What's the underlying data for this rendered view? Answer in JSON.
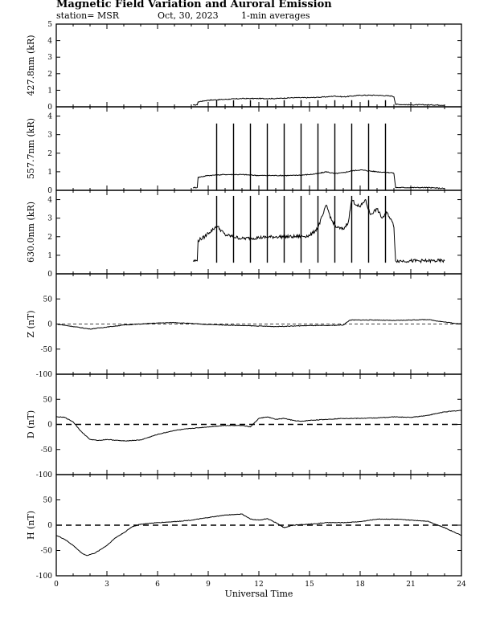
{
  "header": {
    "title": "Magnetic Field Variation and Auroral Emission",
    "station": "station= MSR",
    "date": "Oct, 30, 2023",
    "averaging": "1-min averages"
  },
  "chart_data": [
    {
      "type": "line",
      "id": "427",
      "ylabel": "427.8nm (kR)",
      "ylim": [
        0,
        5
      ],
      "yticks": [
        0,
        1,
        2,
        3,
        4,
        5
      ],
      "xlim": [
        0,
        24
      ],
      "series": [
        {
          "x": [
            8.1,
            8.35,
            8.4,
            9,
            10,
            11,
            12,
            13,
            14,
            15,
            16,
            16.5,
            17,
            17.5,
            18,
            19,
            19.9,
            20.0,
            20.1,
            21,
            22,
            23.0
          ],
          "values": [
            0.1,
            0.12,
            0.3,
            0.4,
            0.45,
            0.5,
            0.5,
            0.5,
            0.55,
            0.55,
            0.6,
            0.65,
            0.6,
            0.65,
            0.7,
            0.7,
            0.65,
            0.6,
            0.15,
            0.12,
            0.12,
            0.1
          ]
        }
      ],
      "spikes": [
        9.5,
        10.5,
        11.5,
        12.5,
        13.5,
        14.5,
        15.5,
        16.5,
        17.5,
        18.5,
        19.5
      ],
      "spike_top": 0.4
    },
    {
      "type": "line",
      "id": "557",
      "ylabel": "557.7nm (kR)",
      "ylim": [
        0,
        4.5
      ],
      "yticks": [
        0,
        1,
        2,
        3,
        4
      ],
      "xlim": [
        0,
        24
      ],
      "series": [
        {
          "x": [
            8.1,
            8.35,
            8.4,
            9,
            10,
            11,
            12,
            13,
            14,
            15,
            15.5,
            16,
            16.5,
            17,
            17.5,
            18,
            19,
            19.9,
            20.0,
            20.1,
            21,
            22,
            23.0
          ],
          "values": [
            0.15,
            0.15,
            0.7,
            0.8,
            0.85,
            0.85,
            0.8,
            0.8,
            0.8,
            0.85,
            0.9,
            1.0,
            0.9,
            0.95,
            1.05,
            1.1,
            1.0,
            0.95,
            0.9,
            0.15,
            0.15,
            0.15,
            0.1
          ]
        }
      ],
      "spikes": [
        9.5,
        10.5,
        11.5,
        12.5,
        13.5,
        14.5,
        15.5,
        16.5,
        17.5,
        18.5,
        19.5
      ],
      "spike_top": 3.6
    },
    {
      "type": "line",
      "id": "630",
      "ylabel": "630.0nm (kR)",
      "ylim": [
        0,
        4.5
      ],
      "yticks": [
        0,
        1,
        2,
        3,
        4
      ],
      "xlim": [
        0,
        24
      ],
      "series": [
        {
          "x": [
            8.1,
            8.35,
            8.4,
            8.8,
            9,
            9.3,
            9.5,
            10,
            10.5,
            11,
            12,
            13,
            14,
            15,
            15.2,
            15.5,
            15.8,
            16,
            16.3,
            16.6,
            17,
            17.3,
            17.5,
            17.8,
            18,
            18.3,
            18.6,
            19,
            19.3,
            19.6,
            19.9,
            20.0,
            20.1,
            21,
            22,
            23.0
          ],
          "values": [
            0.7,
            0.7,
            1.8,
            2.0,
            2.2,
            2.4,
            2.6,
            2.1,
            2.0,
            1.9,
            1.95,
            2.0,
            2.0,
            2.05,
            2.2,
            2.5,
            3.2,
            3.7,
            2.9,
            2.5,
            2.4,
            2.8,
            4.0,
            3.7,
            3.6,
            4.0,
            3.2,
            3.5,
            3.0,
            3.3,
            2.8,
            2.5,
            0.7,
            0.7,
            0.7,
            0.7
          ]
        }
      ],
      "spikes": [
        9.5,
        10.5,
        11.5,
        12.5,
        13.5,
        14.5,
        15.5,
        16.5,
        17.5,
        18.5,
        19.5
      ],
      "spike_top": 4.2,
      "spike_bottom": 0.6
    },
    {
      "type": "line",
      "id": "Z",
      "ylabel": "Z (nT)",
      "ylim": [
        -100,
        100
      ],
      "yticks": [
        -100,
        -50,
        0,
        50
      ],
      "xlim": [
        0,
        24
      ],
      "zero_line": "dashed-thin",
      "series": [
        {
          "x": [
            0,
            1,
            2,
            3,
            4,
            5,
            6,
            7,
            8,
            9,
            10,
            11,
            12,
            13,
            14,
            15,
            16,
            17,
            17.4,
            18,
            19,
            20,
            21,
            22,
            23,
            24
          ],
          "values": [
            0,
            -5,
            -10,
            -6,
            -2,
            0,
            2,
            3,
            1,
            -1,
            -2,
            -3,
            -4,
            -5,
            -4,
            -3,
            -3,
            -2,
            8,
            8,
            8,
            7,
            8,
            9,
            4,
            0
          ]
        }
      ]
    },
    {
      "type": "line",
      "id": "D",
      "ylabel": "D (nT)",
      "ylim": [
        -100,
        100
      ],
      "yticks": [
        -100,
        -50,
        0,
        50
      ],
      "xlim": [
        0,
        24
      ],
      "zero_line": "dashed-thick",
      "series": [
        {
          "x": [
            0,
            0.5,
            1,
            1.5,
            2,
            2.5,
            3,
            4,
            5,
            6,
            7,
            8,
            9,
            10,
            11,
            11.5,
            12,
            12.5,
            13,
            13.5,
            14,
            14.5,
            15,
            16,
            17,
            18,
            19,
            20,
            21,
            22,
            23,
            24
          ],
          "values": [
            15,
            14,
            5,
            -15,
            -30,
            -32,
            -30,
            -33,
            -31,
            -20,
            -12,
            -8,
            -5,
            -2,
            -2,
            -5,
            12,
            15,
            10,
            12,
            8,
            6,
            8,
            10,
            12,
            12,
            13,
            15,
            14,
            18,
            25,
            28
          ]
        }
      ]
    },
    {
      "type": "line",
      "id": "H",
      "ylabel": "H (nT)",
      "ylim": [
        -100,
        100
      ],
      "yticks": [
        -100,
        -50,
        0,
        50
      ],
      "xlim": [
        0,
        24
      ],
      "xticks": [
        0,
        3,
        6,
        9,
        12,
        15,
        18,
        21,
        24
      ],
      "xlabel": "Universal Time",
      "zero_line": "dashed-thick",
      "series": [
        {
          "x": [
            0,
            0.5,
            1,
            1.5,
            1.8,
            2.3,
            3,
            3.5,
            4,
            4.5,
            5,
            6,
            7,
            8,
            9,
            10,
            11,
            11.5,
            12,
            12.5,
            13,
            13.5,
            14,
            15,
            16,
            17,
            18,
            19,
            20,
            21,
            22,
            23,
            24
          ],
          "values": [
            -20,
            -28,
            -40,
            -55,
            -60,
            -55,
            -40,
            -25,
            -15,
            -3,
            2,
            5,
            7,
            10,
            15,
            20,
            22,
            12,
            10,
            13,
            5,
            -5,
            0,
            2,
            5,
            5,
            7,
            12,
            12,
            10,
            8,
            -5,
            -20
          ]
        }
      ]
    }
  ]
}
